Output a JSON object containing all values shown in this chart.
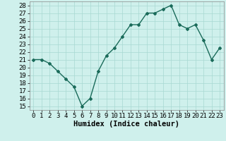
{
  "x": [
    0,
    1,
    2,
    3,
    4,
    5,
    6,
    7,
    8,
    9,
    10,
    11,
    12,
    13,
    14,
    15,
    16,
    17,
    18,
    19,
    20,
    21,
    22,
    23
  ],
  "y": [
    21,
    21,
    20.5,
    19.5,
    18.5,
    17.5,
    15,
    16,
    19.5,
    21.5,
    22.5,
    24,
    25.5,
    25.5,
    27,
    27,
    27.5,
    28,
    25.5,
    25,
    25.5,
    23.5,
    21,
    22.5
  ],
  "line_color": "#1a6b5a",
  "marker": "D",
  "marker_size": 2,
  "bg_color": "#cff0ec",
  "grid_color": "#a8d8d2",
  "xlabel": "Humidex (Indice chaleur)",
  "xlim": [
    -0.5,
    23.5
  ],
  "ylim": [
    14.5,
    28.5
  ],
  "yticks": [
    15,
    16,
    17,
    18,
    19,
    20,
    21,
    22,
    23,
    24,
    25,
    26,
    27,
    28
  ],
  "xticks": [
    0,
    1,
    2,
    3,
    4,
    5,
    6,
    7,
    8,
    9,
    10,
    11,
    12,
    13,
    14,
    15,
    16,
    17,
    18,
    19,
    20,
    21,
    22,
    23
  ],
  "xlabel_fontsize": 7.5,
  "tick_fontsize": 6.5,
  "linewidth": 1.0
}
